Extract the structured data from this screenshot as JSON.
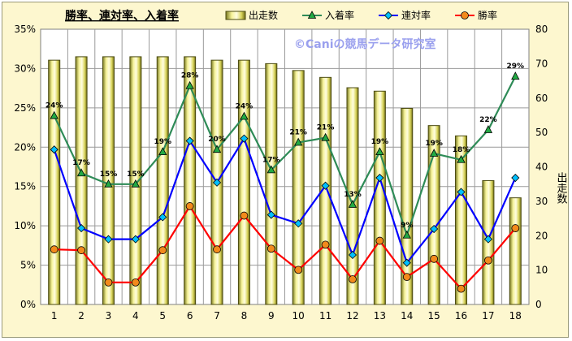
{
  "chart_data": {
    "type": "bar+line",
    "title": "勝率、連対率、入着率",
    "watermark": "©Caniの競馬データ研究室",
    "categories": [
      "1",
      "2",
      "3",
      "4",
      "5",
      "6",
      "7",
      "8",
      "9",
      "10",
      "11",
      "12",
      "13",
      "14",
      "15",
      "16",
      "17",
      "18"
    ],
    "y_left": {
      "min": 0,
      "max": 35,
      "step": 5,
      "unit": "%"
    },
    "y_right": {
      "min": 0,
      "max": 80,
      "step": 10,
      "label": "出走数"
    },
    "bars": {
      "name": "出走数",
      "values": [
        71,
        72,
        72,
        72,
        72,
        72,
        71,
        71,
        70,
        68,
        66,
        63,
        62,
        57,
        52,
        49,
        36,
        31
      ]
    },
    "series": [
      {
        "name": "入着率",
        "color": "#2e8b57",
        "marker": "triangle",
        "values": [
          24,
          16.7,
          15.3,
          15.3,
          19.4,
          27.8,
          19.7,
          23.9,
          17.1,
          20.6,
          21.2,
          12.7,
          19.4,
          8.8,
          19.2,
          18.4,
          22.2,
          29
        ],
        "labels": [
          "24%",
          "17%",
          "15%",
          "15%",
          "19%",
          "28%",
          "20%",
          "24%",
          "17%",
          "21%",
          "21%",
          "13%",
          "19%",
          "9%",
          "19%",
          "18%",
          "22%",
          "29%"
        ]
      },
      {
        "name": "連対率",
        "color": "#0000ff",
        "marker": "diamond",
        "values": [
          19.7,
          9.7,
          8.3,
          8.3,
          11.1,
          20.8,
          15.5,
          21.1,
          11.4,
          10.3,
          15.1,
          6.3,
          16.1,
          5.3,
          9.6,
          14.3,
          8.3,
          16.1
        ]
      },
      {
        "name": "勝率",
        "color": "#ff0000",
        "marker": "circle",
        "values": [
          7,
          6.9,
          2.8,
          2.8,
          6.9,
          12.5,
          7,
          11.3,
          7.1,
          4.4,
          7.6,
          3.2,
          8.1,
          3.5,
          5.8,
          2,
          5.6,
          9.7
        ]
      }
    ],
    "legend": [
      "出走数",
      "入着率",
      "連対率",
      "勝率"
    ],
    "legend_position": "top"
  }
}
